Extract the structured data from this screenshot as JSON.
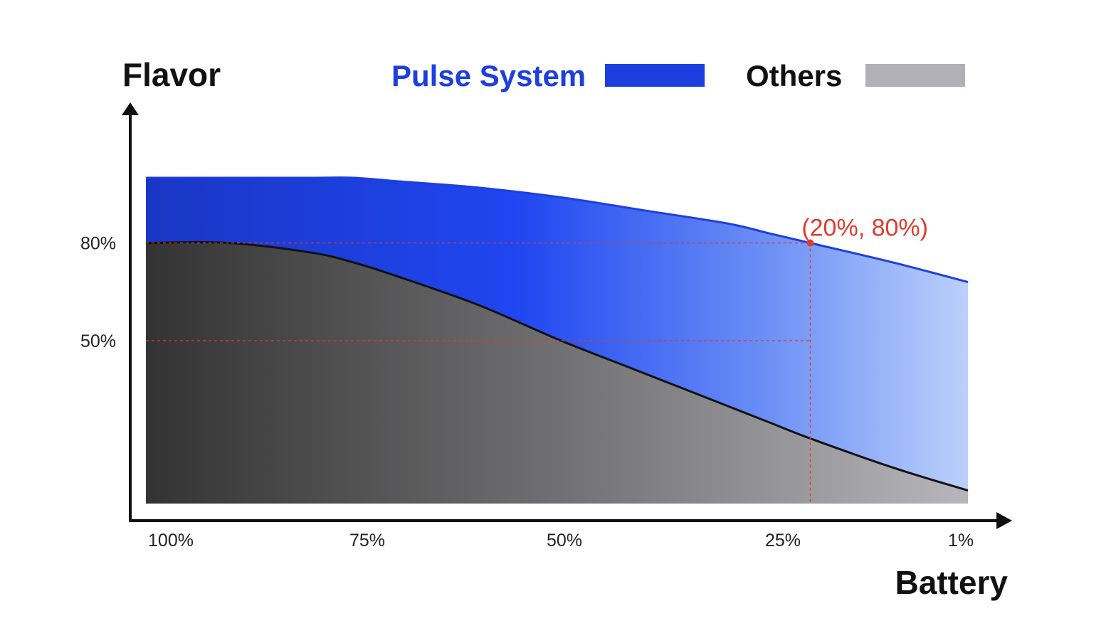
{
  "chart_data": {
    "type": "area",
    "ylabel": "Flavor",
    "xlabel": "Battery",
    "x_reversed": true,
    "x": [
      100,
      90,
      80,
      75,
      70,
      60,
      50,
      40,
      30,
      25,
      20,
      10,
      1
    ],
    "x_ticks": [
      "100%",
      "75%",
      "50%",
      "25%",
      "1%"
    ],
    "y_ticks": [
      "80%",
      "50%"
    ],
    "series": [
      {
        "name": "Pulse System",
        "color": "#1d3fe0",
        "values": [
          100,
          100,
          100,
          100,
          99,
          97,
          94,
          90,
          86,
          83,
          80,
          74,
          68
        ]
      },
      {
        "name": "Others",
        "color": "#b0b0b6",
        "values": [
          80,
          80,
          77,
          74,
          70,
          61,
          50,
          40,
          30,
          25,
          20,
          11,
          4
        ]
      }
    ],
    "annotation": {
      "label": "(20%, 80%)",
      "x": 20,
      "y": 80,
      "color": "#e03a2f"
    },
    "reference_lines": [
      80,
      50
    ],
    "legend_position": "top-center",
    "grid": false
  }
}
